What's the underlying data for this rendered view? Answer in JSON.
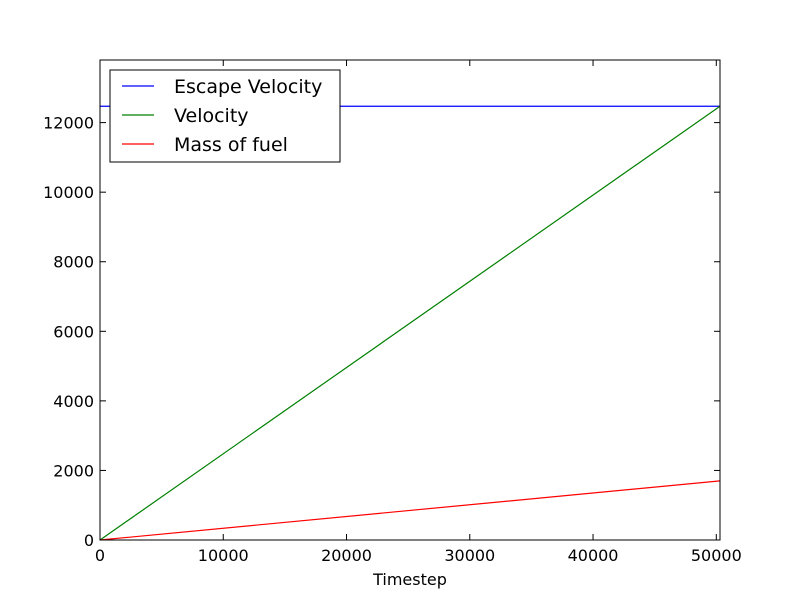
{
  "chart_data": {
    "type": "line",
    "title": "",
    "xlabel": "Timestep",
    "ylabel": "",
    "xlim": [
      0,
      50300
    ],
    "ylim": [
      0,
      13800
    ],
    "x_ticks": [
      0,
      10000,
      20000,
      30000,
      40000,
      50000
    ],
    "y_ticks": [
      0,
      2000,
      4000,
      6000,
      8000,
      10000,
      12000
    ],
    "grid": false,
    "legend_position": "top-left",
    "series": [
      {
        "name": "Escape Velocity",
        "color": "#0000ff",
        "x": [
          0,
          50300
        ],
        "y": [
          12470,
          12470
        ]
      },
      {
        "name": "Velocity",
        "color": "#008000",
        "x": [
          0,
          50300
        ],
        "y": [
          0,
          12470
        ]
      },
      {
        "name": "Mass of fuel",
        "color": "#ff0000",
        "x": [
          0,
          50300
        ],
        "y": [
          0,
          1700
        ]
      }
    ]
  }
}
